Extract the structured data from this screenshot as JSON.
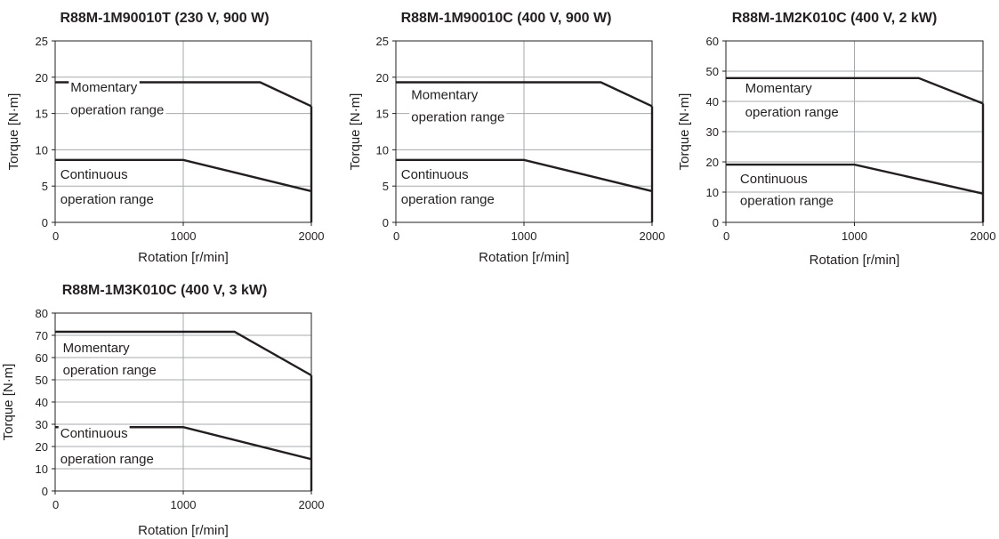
{
  "chart_data": [
    {
      "type": "line",
      "title": "R88M-1M90010T (230 V, 900 W)",
      "xlabel": "Rotation [r/min]",
      "ylabel": "Torque [N·m]",
      "xlim": [
        0,
        2000
      ],
      "ylim": [
        0,
        25
      ],
      "xticks": [
        "0",
        "1000",
        "2000"
      ],
      "yticks": [
        "0",
        "5",
        "10",
        "15",
        "20",
        "25"
      ],
      "grid": true,
      "series": [
        {
          "name": "Momentary operation range",
          "x": [
            0,
            1600,
            2000
          ],
          "y": [
            19.3,
            19.3,
            16.0
          ]
        },
        {
          "name": "Continuous operation range",
          "x": [
            0,
            1000,
            2000
          ],
          "y": [
            8.6,
            8.6,
            4.3
          ]
        }
      ],
      "annotations": [
        "Momentary",
        "operation range",
        "Continuous",
        "operation range"
      ]
    },
    {
      "type": "line",
      "title": "R88M-1M90010C (400 V, 900 W)",
      "xlabel": "Rotation [r/min]",
      "ylabel": "Torque [N·m]",
      "xlim": [
        0,
        2000
      ],
      "ylim": [
        0,
        25
      ],
      "xticks": [
        "0",
        "1000",
        "2000"
      ],
      "yticks": [
        "0",
        "5",
        "10",
        "15",
        "20",
        "25"
      ],
      "grid": true,
      "series": [
        {
          "name": "Momentary operation range",
          "x": [
            0,
            1600,
            2000
          ],
          "y": [
            19.3,
            19.3,
            16.0
          ]
        },
        {
          "name": "Continuous operation range",
          "x": [
            0,
            1000,
            2000
          ],
          "y": [
            8.6,
            8.6,
            4.3
          ]
        }
      ],
      "annotations": [
        "Momentary",
        "operation range",
        "Continuous",
        "operation range"
      ]
    },
    {
      "type": "line",
      "title": "R88M-1M2K010C (400 V, 2 kW)",
      "xlabel": "Rotation [r/min]",
      "ylabel": "Torque [N·m]",
      "xlim": [
        0,
        2000
      ],
      "ylim": [
        0,
        60
      ],
      "xticks": [
        "0",
        "1000",
        "2000"
      ],
      "yticks": [
        "0",
        "10",
        "20",
        "30",
        "40",
        "50",
        "60"
      ],
      "grid": true,
      "series": [
        {
          "name": "Momentary operation range",
          "x": [
            0,
            1500,
            2000
          ],
          "y": [
            47.7,
            47.7,
            39.3
          ]
        },
        {
          "name": "Continuous operation range",
          "x": [
            0,
            1000,
            2000
          ],
          "y": [
            19.1,
            19.1,
            9.5
          ]
        }
      ],
      "annotations": [
        "Momentary",
        "operation range",
        "Continuous",
        "operation range"
      ]
    },
    {
      "type": "line",
      "title": "R88M-1M3K010C (400 V, 3 kW)",
      "xlabel": "Rotation [r/min]",
      "ylabel": "Torque [N·m]",
      "xlim": [
        0,
        2000
      ],
      "ylim": [
        0,
        80
      ],
      "xticks": [
        "0",
        "1000",
        "2000"
      ],
      "yticks": [
        "0",
        "10",
        "20",
        "30",
        "40",
        "50",
        "60",
        "70",
        "80"
      ],
      "grid": true,
      "series": [
        {
          "name": "Momentary operation range",
          "x": [
            0,
            1400,
            2000
          ],
          "y": [
            71.6,
            71.6,
            52.0
          ]
        },
        {
          "name": "Continuous operation range",
          "x": [
            0,
            1000,
            2000
          ],
          "y": [
            28.7,
            28.7,
            14.3
          ]
        }
      ],
      "annotations": [
        "Momentary",
        "operation range",
        "Continuous",
        "operation range"
      ]
    }
  ]
}
